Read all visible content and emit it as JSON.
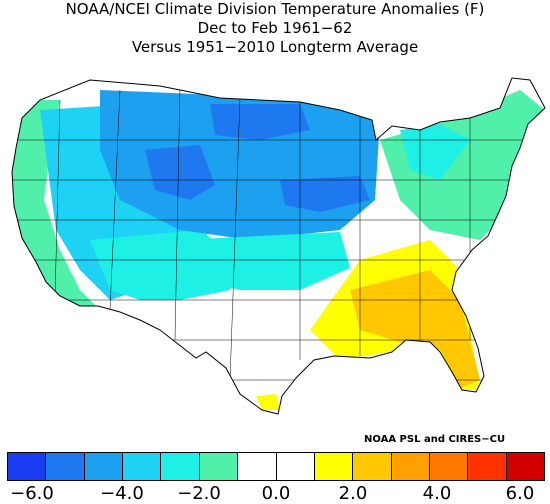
{
  "title": {
    "line1": "NOAA/NCEI Climate Division Temperature Anomalies (F)",
    "line2": "Dec to Feb 1961−62",
    "line3": "Versus 1951−2010 Longterm Average"
  },
  "credit": "NOAA PSL and CIRES−CU",
  "legend": {
    "colors": [
      "#1a3cf0",
      "#1e78f0",
      "#1ea0f0",
      "#1ed2f5",
      "#1ef0e6",
      "#50f0aa",
      "#ffffff",
      "#ffffff",
      "#ffff00",
      "#ffc800",
      "#ffa000",
      "#ff7800",
      "#ff3200",
      "#d20000"
    ],
    "tick_labels": [
      "−6.0",
      "−4.0",
      "−2.0",
      "0.0",
      "2.0",
      "4.0",
      "6.0"
    ]
  },
  "map_colors": {
    "deep_blue": "#1a3cf0",
    "blue": "#1e78f0",
    "mid_blue": "#1ea0f0",
    "cyan": "#1ed2f5",
    "aqua": "#1ef0e6",
    "sea_green": "#50f0aa",
    "white": "#ffffff",
    "yellow": "#ffff00",
    "orange": "#ffc800"
  }
}
